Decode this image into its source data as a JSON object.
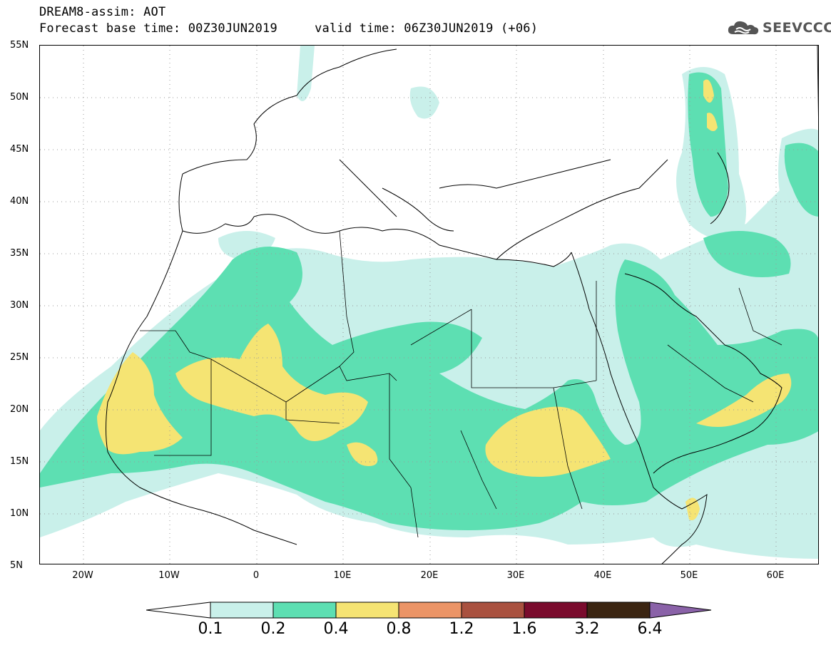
{
  "header": {
    "line1": "DREAM8-assim: AOT",
    "line2": "Forecast base time: 00Z30JUN2019     valid time: 06Z30JUN2019 (+06)"
  },
  "logo": {
    "text": "SEEVCCC",
    "icon": "cloud-icon"
  },
  "map": {
    "region": "North Africa, Europe and Middle East",
    "lat_range": [
      5,
      55
    ],
    "lon_range": [
      -25,
      65
    ],
    "lat_labels": [
      "55N",
      "50N",
      "45N",
      "40N",
      "35N",
      "30N",
      "25N",
      "20N",
      "15N",
      "10N",
      "5N"
    ],
    "lon_labels": [
      "20W",
      "10W",
      "0",
      "10E",
      "20E",
      "30E",
      "40E",
      "50E",
      "60E"
    ]
  },
  "colorbar": {
    "labels": [
      "0.1",
      "0.2",
      "0.4",
      "0.8",
      "1.2",
      "1.6",
      "3.2",
      "6.4"
    ],
    "colors": [
      "#c9f0ea",
      "#5ddfb2",
      "#f5e473",
      "#eb9466",
      "#a9513f",
      "#7a0b2d",
      "#3b2512",
      "#8a62a8"
    ]
  }
}
